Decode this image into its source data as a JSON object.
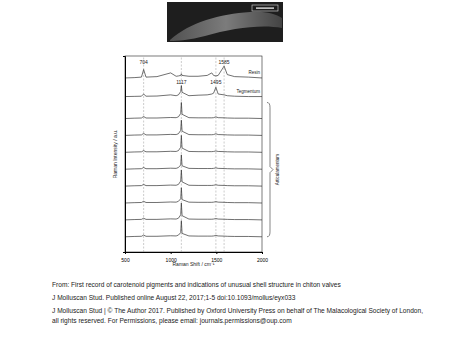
{
  "chart_data": {
    "type": "line",
    "x_label": "Raman Shift / cm⁻¹",
    "y_label": "Raman Intensity / a.u.",
    "x": [
      500,
      600,
      680,
      704,
      730,
      850,
      1000,
      1060,
      1085,
      1110,
      1117,
      1125,
      1200,
      1300,
      1400,
      1450,
      1470,
      1495,
      1520,
      1585,
      1620,
      1700,
      1850,
      2000
    ],
    "xlim": [
      500,
      2000
    ],
    "xticks": [
      500,
      1000,
      1500,
      2000
    ],
    "ylim": [
      0,
      11.6
    ],
    "tick_labels": "x",
    "color": "#333333",
    "series": [
      {
        "name": "Resin",
        "values": [
          10.3,
          10.32,
          10.35,
          10.8,
          10.35,
          10.38,
          10.6,
          10.4,
          10.42,
          10.45,
          10.55,
          10.45,
          10.4,
          10.4,
          10.45,
          10.6,
          10.45,
          10.42,
          10.45,
          11.0,
          10.5,
          10.38,
          10.35,
          10.3
        ]
      },
      {
        "name": "Tegmentum",
        "values": [
          9.2,
          9.21,
          9.22,
          9.35,
          9.22,
          9.23,
          9.3,
          9.25,
          9.3,
          9.5,
          9.85,
          9.45,
          9.25,
          9.28,
          9.3,
          9.35,
          9.4,
          9.75,
          9.35,
          9.3,
          9.25,
          9.22,
          9.2,
          9.2
        ]
      },
      {
        "values": [
          7.9,
          7.92,
          7.93,
          8.02,
          7.93,
          7.93,
          7.96,
          7.95,
          8.0,
          8.2,
          8.85,
          8.15,
          7.95,
          7.94,
          7.94,
          7.94,
          7.95,
          8.0,
          7.95,
          7.94,
          7.93,
          7.92,
          7.92,
          7.9
        ]
      },
      {
        "values": [
          6.9,
          6.92,
          6.93,
          7.02,
          6.93,
          6.93,
          6.96,
          6.95,
          7.0,
          7.2,
          7.8,
          7.15,
          6.95,
          6.94,
          6.94,
          6.94,
          6.95,
          7.0,
          6.95,
          6.94,
          6.93,
          6.92,
          6.92,
          6.9
        ]
      },
      {
        "values": [
          5.9,
          5.92,
          5.93,
          6.0,
          5.93,
          5.93,
          5.96,
          5.95,
          6.0,
          6.2,
          6.9,
          6.15,
          5.95,
          5.94,
          5.94,
          5.94,
          5.95,
          5.98,
          5.95,
          5.94,
          5.93,
          5.92,
          5.92,
          5.9
        ]
      },
      {
        "values": [
          4.9,
          4.92,
          4.93,
          5.0,
          4.93,
          4.93,
          4.96,
          4.95,
          5.0,
          5.15,
          5.75,
          5.1,
          4.95,
          4.94,
          4.94,
          4.94,
          4.95,
          4.98,
          4.95,
          4.94,
          4.93,
          4.92,
          4.92,
          4.9
        ]
      },
      {
        "values": [
          3.9,
          3.92,
          3.93,
          4.0,
          3.93,
          3.93,
          3.96,
          3.95,
          4.0,
          4.2,
          4.85,
          4.15,
          3.95,
          3.94,
          3.94,
          3.94,
          3.95,
          3.98,
          3.95,
          3.94,
          3.93,
          3.92,
          3.92,
          3.9
        ]
      },
      {
        "values": [
          2.9,
          2.92,
          2.93,
          3.0,
          2.93,
          2.93,
          2.96,
          2.95,
          3.0,
          3.15,
          3.8,
          3.1,
          2.95,
          2.94,
          2.94,
          2.94,
          2.95,
          2.98,
          2.95,
          2.94,
          2.93,
          2.92,
          2.92,
          2.9
        ]
      },
      {
        "values": [
          1.9,
          1.92,
          1.93,
          2.0,
          1.93,
          1.93,
          1.96,
          1.95,
          2.0,
          2.2,
          2.9,
          2.15,
          1.95,
          1.94,
          1.94,
          1.94,
          1.95,
          1.98,
          1.95,
          1.94,
          1.93,
          1.92,
          1.92,
          1.9
        ]
      },
      {
        "values": [
          0.9,
          0.92,
          0.93,
          1.0,
          0.93,
          0.93,
          0.96,
          0.95,
          1.0,
          1.15,
          1.85,
          1.1,
          0.95,
          0.94,
          0.94,
          0.94,
          0.95,
          0.98,
          0.95,
          0.94,
          0.93,
          0.92,
          0.92,
          0.9
        ]
      }
    ],
    "annotations": [
      {
        "label": "704",
        "x": 704,
        "y": 11.1
      },
      {
        "label": "1585",
        "x": 1585,
        "y": 11.15
      },
      {
        "label": "1117",
        "x": 1117,
        "y": 9.95
      },
      {
        "label": "1495",
        "x": 1495,
        "y": 9.95
      }
    ],
    "bracket_label": "Articulamentum",
    "source_lines": [
      "From: First record of carotenoid pigments and indications of unusual shell structure in chiton valves",
      "J Molluscan Stud. Published online  August 22, 2017;1-5 doi:10.1093/mollus/eyx033",
      "J Molluscan Stud | © The Author 2017. Published by Oxford University Press on behalf of The Malacological Society of London,",
      "all rights reserved. For Permissions, please email: journals.permissions@oup.com"
    ]
  }
}
